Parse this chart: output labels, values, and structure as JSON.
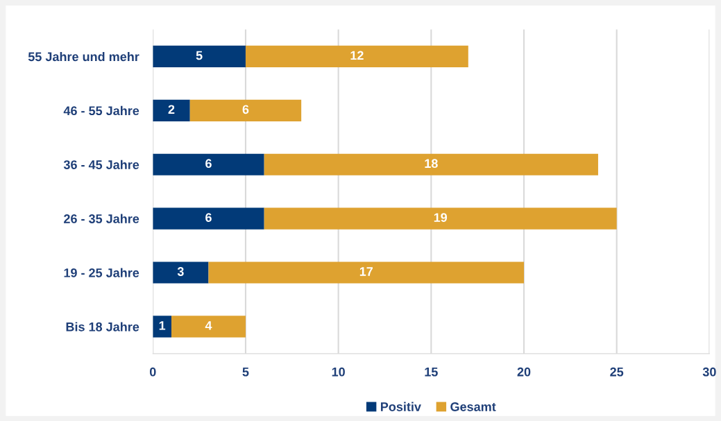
{
  "chart_data": {
    "type": "bar",
    "orientation": "horizontal",
    "stacked": true,
    "categories": [
      "55 Jahre und mehr",
      "46 - 55 Jahre",
      "36 - 45 Jahre",
      "26 - 35 Jahre",
      "19 - 25 Jahre",
      "Bis 18 Jahre"
    ],
    "series": [
      {
        "name": "Positiv",
        "color": "#023a78",
        "values": [
          5,
          2,
          6,
          6,
          3,
          1
        ]
      },
      {
        "name": "Gesamt",
        "color": "#dea230",
        "values": [
          12,
          6,
          18,
          19,
          17,
          4
        ]
      }
    ],
    "xlim": [
      0,
      30
    ],
    "xticks": [
      0,
      5,
      10,
      15,
      20,
      25,
      30
    ],
    "grid": "x",
    "legend": "bottom",
    "data_labels": true
  }
}
